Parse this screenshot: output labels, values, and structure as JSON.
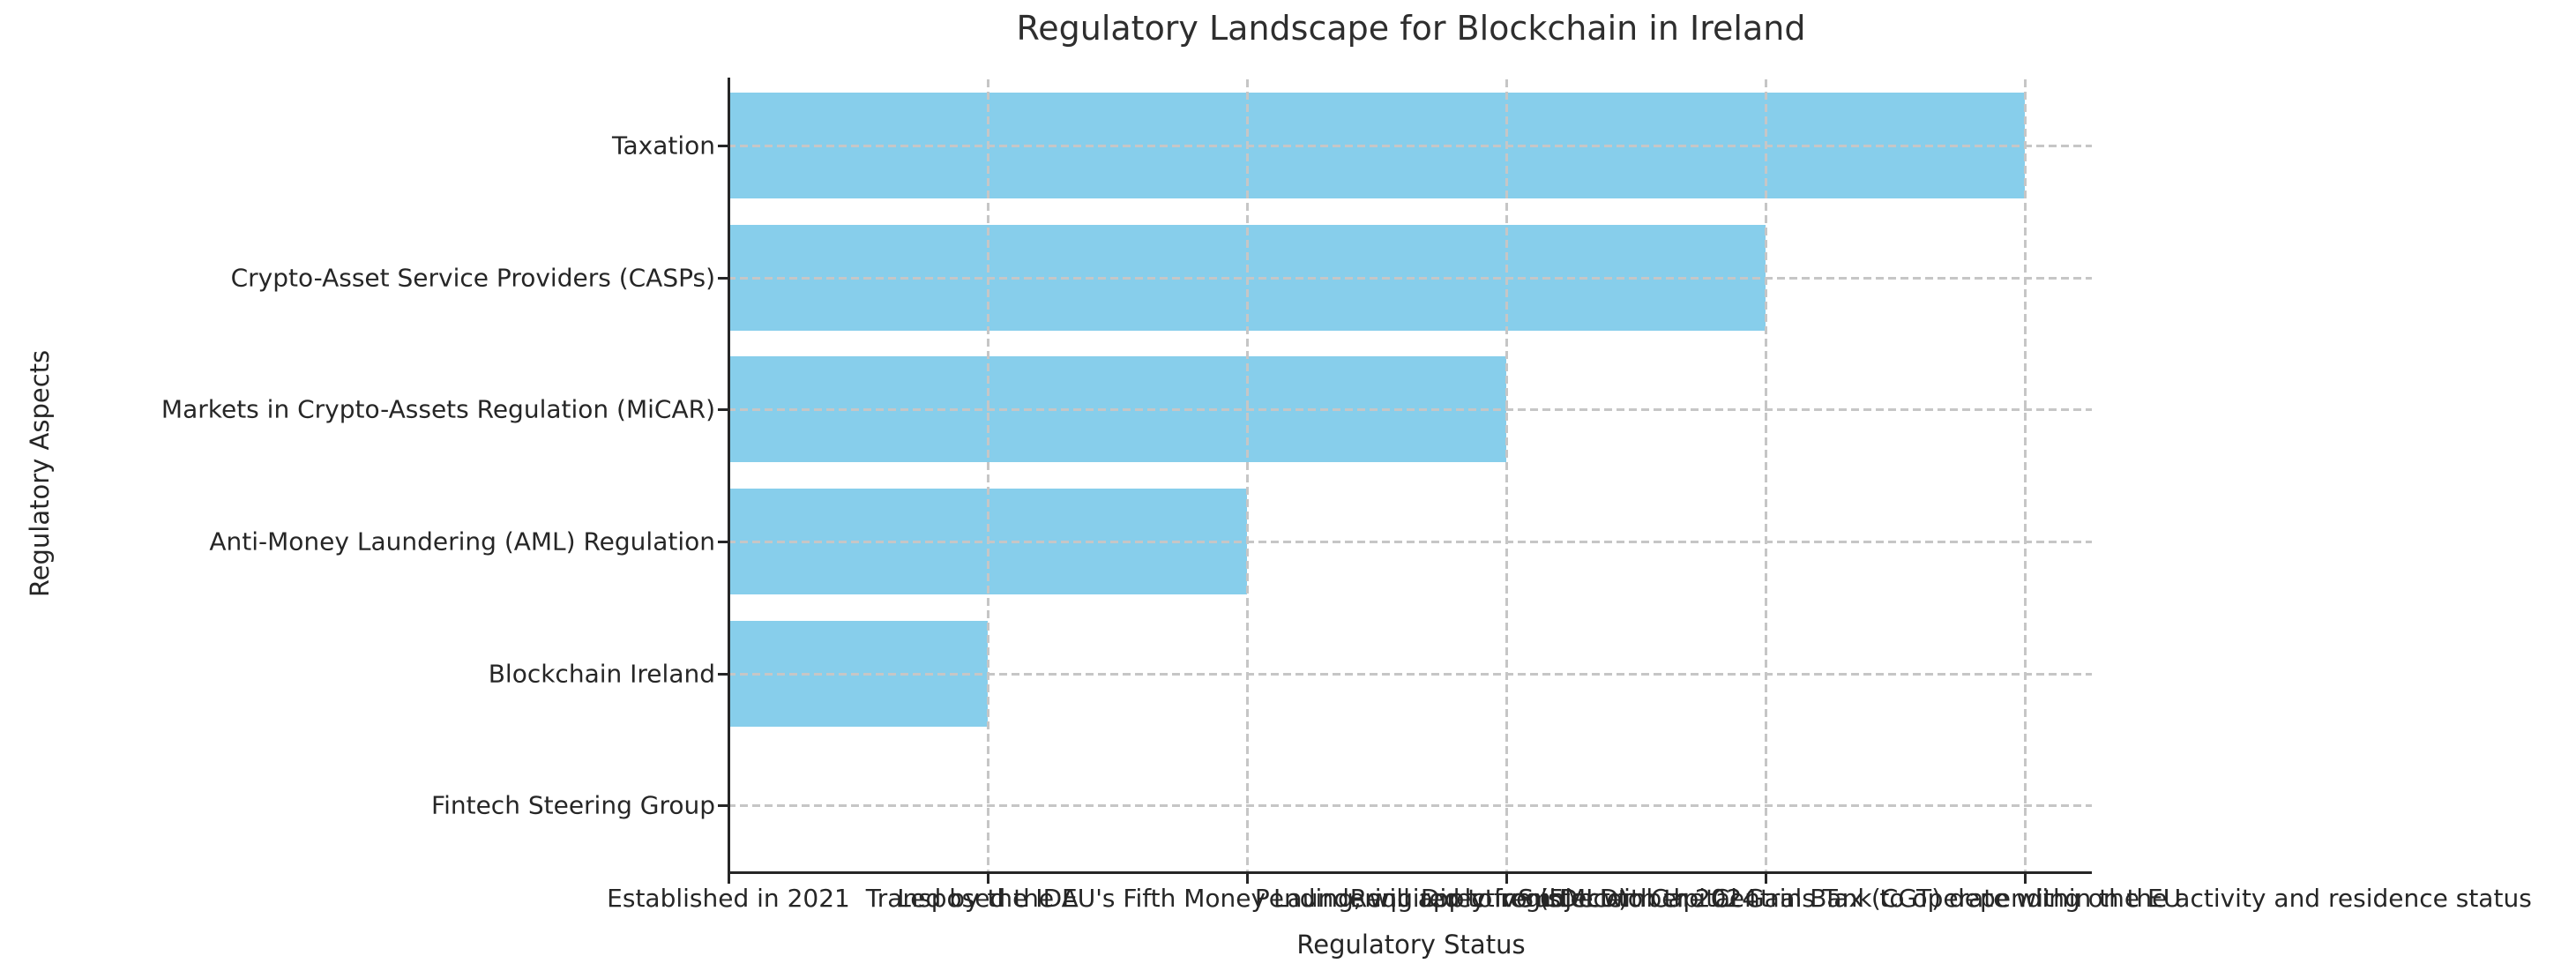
{
  "chart_data": {
    "type": "bar",
    "orientation": "horizontal",
    "title": "Regulatory Landscape for Blockchain in Ireland",
    "xlabel": "Regulatory Status",
    "ylabel": "Regulatory Aspects",
    "categories": [
      "Taxation",
      "Crypto-Asset Service Providers (CASPs)",
      "Markets in Crypto-Assets Regulation (MiCAR)",
      "Anti-Money Laundering (AML) Regulation",
      "Blockchain Ireland",
      "Fintech Steering Group"
    ],
    "series": [
      {
        "aspect": "Taxation",
        "status": "Subject to Capital Gains Tax (CGT) depending on the activity and residence status",
        "x_position": 5
      },
      {
        "aspect": "Crypto-Asset Service Providers (CASPs)",
        "status": "Required to register with the Central Bank to operate within the EU",
        "x_position": 4
      },
      {
        "aspect": "Markets in Crypto-Assets Regulation (MiCAR)",
        "status": "Pending, will apply from December 2024",
        "x_position": 3
      },
      {
        "aspect": "Anti-Money Laundering (AML) Regulation",
        "status": "Transposed the EU's Fifth Money Laundering Directive (5MLD)",
        "x_position": 2
      },
      {
        "aspect": "Blockchain Ireland",
        "status": "Led by the IDA",
        "x_position": 1
      },
      {
        "aspect": "Fintech Steering Group",
        "status": "Established in 2021",
        "x_position": 0
      }
    ],
    "x_tick_labels": [
      "Established in 2021",
      "Led by the IDA",
      "Transposed the EU's Fifth Money Laundering Directive (5MLD)",
      "Pending, will apply from December 2024",
      "Required to register with the Central Bank to operate within the EU",
      "Subject to Capital Gains Tax (CGT) depending on the activity and residence status"
    ],
    "values": [
      5,
      4,
      3,
      2,
      1,
      0
    ],
    "xlim": [
      0,
      5.26
    ],
    "bar_color": "#87CEEB",
    "grid": true,
    "grid_color": "#c6c6c6",
    "spine_color": "#262626",
    "text_color": "#262626",
    "legend": "none"
  }
}
